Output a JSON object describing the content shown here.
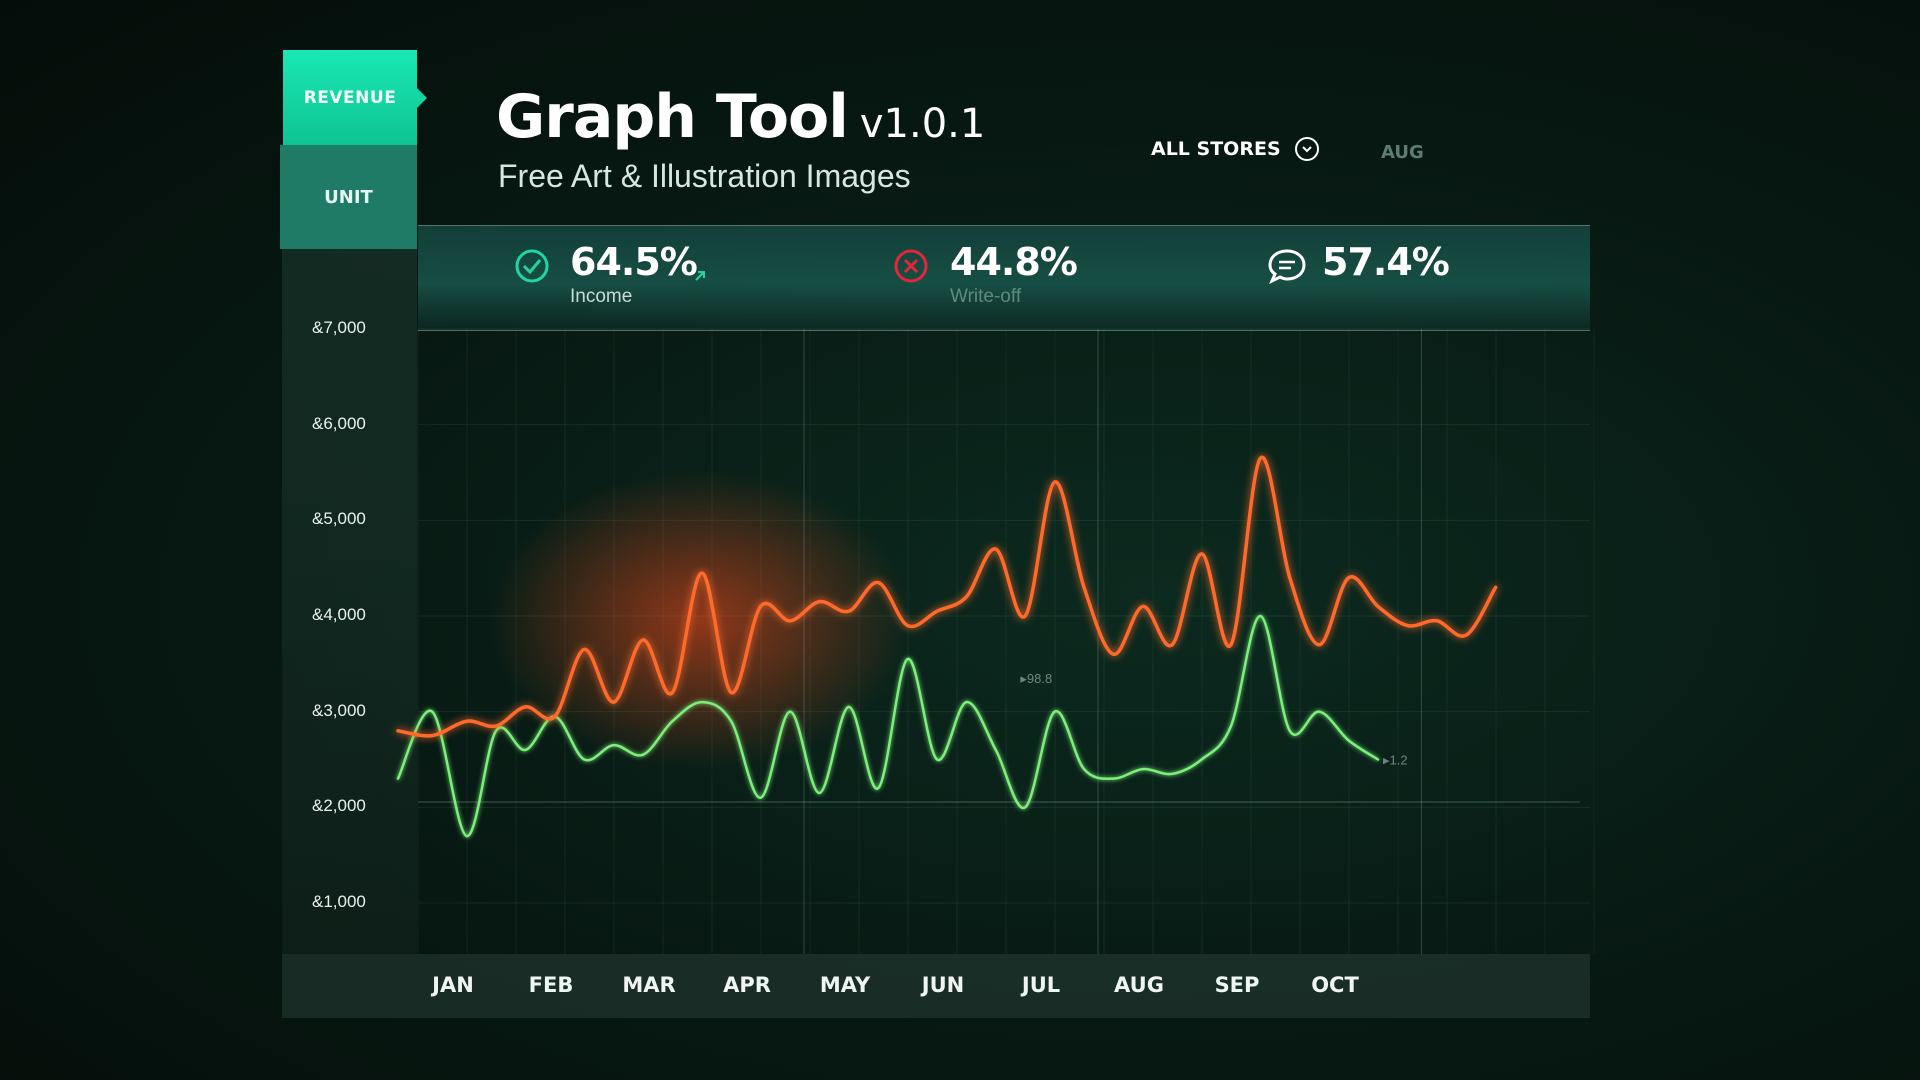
{
  "header": {
    "title": "Graph Tool",
    "version": "v1.0.1",
    "subtitle": "Free Art & Illustration Images"
  },
  "tabs": [
    {
      "label": "REVENUE",
      "active": true
    },
    {
      "label": "UNIT",
      "active": false
    }
  ],
  "filters": {
    "store": "ALL STORES",
    "month": "AUG"
  },
  "stats": [
    {
      "value": "64.5%",
      "label": "Income",
      "icon": "check-circle-icon"
    },
    {
      "value": "44.8%",
      "label": "Write-off",
      "icon": "x-circle-icon"
    },
    {
      "value": "57.4%",
      "label": "",
      "icon": "chat-bubble-icon"
    }
  ],
  "colors": {
    "accent": "#14d6a3",
    "income_line": "#ff6a2b",
    "writeoff_line": "#7cf07a"
  },
  "chart_data": {
    "type": "line",
    "ylim": [
      1000,
      7000
    ],
    "yticks": [
      "&7,000",
      "&6,000",
      "&5,000",
      "&4,000",
      "&3,000",
      "&2,000",
      "&1,000"
    ],
    "ytick_values": [
      7000,
      6000,
      5000,
      4000,
      3000,
      2000,
      1000
    ],
    "categories": [
      "JAN",
      "FEB",
      "MAR",
      "APR",
      "MAY",
      "JUN",
      "JUL",
      "AUG",
      "SEP",
      "OCT"
    ],
    "annotations": [
      {
        "text": "▸98.8",
        "x": 6.3,
        "y": 3300
      },
      {
        "text": "▸1.2",
        "x": 10.0,
        "y": 2450
      }
    ],
    "series": [
      {
        "x": [
          0.0,
          0.35,
          0.7,
          1.0,
          1.3,
          1.6,
          1.9,
          2.2,
          2.5,
          2.8,
          3.1,
          3.4,
          3.7,
          4.0,
          4.3,
          4.6,
          4.9,
          5.2,
          5.5,
          5.8,
          6.1,
          6.4,
          6.7,
          7.0,
          7.3,
          7.6,
          7.9,
          8.2,
          8.5,
          8.8,
          9.1,
          9.4,
          9.7,
          10.0,
          10.3,
          10.6,
          10.9,
          11.2
        ],
        "y": [
          2800,
          2750,
          2900,
          2850,
          3050,
          2950,
          3650,
          3100,
          3750,
          3200,
          4450,
          3200,
          4100,
          3950,
          4150,
          4050,
          4350,
          3900,
          4050,
          4200,
          4700,
          4000,
          5400,
          4300,
          3600,
          4100,
          3700,
          4650,
          3700,
          5650,
          4400,
          3700,
          4400,
          4100,
          3900,
          3950,
          3800,
          4300
        ]
      },
      {
        "x": [
          0.0,
          0.35,
          0.7,
          1.0,
          1.3,
          1.6,
          1.9,
          2.2,
          2.5,
          2.8,
          3.1,
          3.4,
          3.7,
          4.0,
          4.3,
          4.6,
          4.9,
          5.2,
          5.5,
          5.8,
          6.1,
          6.4,
          6.7,
          7.0,
          7.3,
          7.6,
          7.9,
          8.2,
          8.5,
          8.8,
          9.1,
          9.4,
          9.7,
          10.0
        ],
        "y": [
          2300,
          3000,
          1700,
          2800,
          2600,
          2950,
          2500,
          2650,
          2550,
          2900,
          3100,
          2900,
          2100,
          3000,
          2150,
          3050,
          2200,
          3550,
          2500,
          3100,
          2600,
          2000,
          3000,
          2400,
          2300,
          2400,
          2350,
          2500,
          2850,
          4000,
          2800,
          3000,
          2700,
          2500
        ]
      }
    ]
  }
}
